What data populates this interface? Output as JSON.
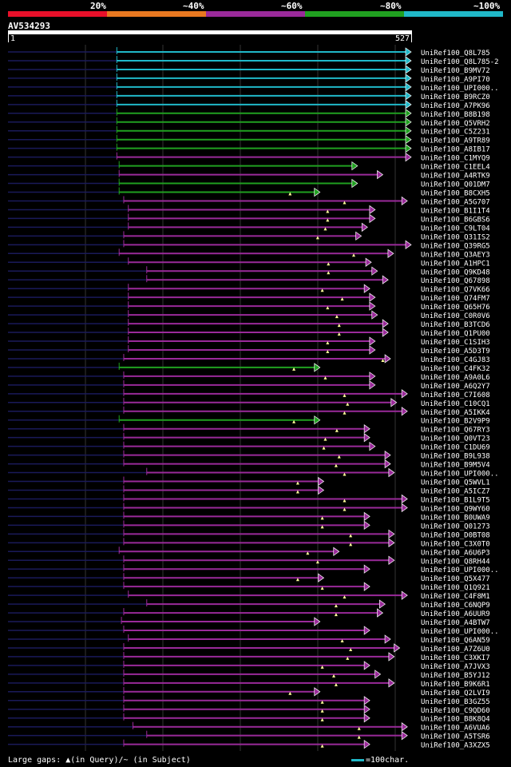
{
  "legend": {
    "labels": [
      "20%",
      "~40%",
      "~60%",
      "~80%",
      "~100%"
    ],
    "colors": [
      "#e8102a",
      "#e87820",
      "#9a2a9a",
      "#20a020",
      "#20b8c8"
    ]
  },
  "query": {
    "name": "AV534293",
    "start": "1",
    "end": "527",
    "length": 527
  },
  "colors": {
    "cyan": "#20b8c8",
    "green": "#20a020",
    "purple": "#9a2a9a",
    "dark": "#1a1a5a",
    "grid": "#333333"
  },
  "hits": [
    {
      "label": "UniRef100_Q8L785",
      "color": "cyan",
      "start": 143,
      "end": 527,
      "gap": null
    },
    {
      "label": "UniRef100_Q8L785-2",
      "color": "cyan",
      "start": 143,
      "end": 527,
      "gap": null
    },
    {
      "label": "UniRef100_B9MV72",
      "color": "cyan",
      "start": 143,
      "end": 527,
      "gap": null
    },
    {
      "label": "UniRef100_A9PI70",
      "color": "cyan",
      "start": 143,
      "end": 527,
      "gap": null
    },
    {
      "label": "UniRef100_UPI000..",
      "color": "cyan",
      "start": 143,
      "end": 527,
      "gap": null
    },
    {
      "label": "UniRef100_B9RCZ0",
      "color": "cyan",
      "start": 143,
      "end": 527,
      "gap": null
    },
    {
      "label": "UniRef100_A7PK96",
      "color": "cyan",
      "start": 143,
      "end": 527,
      "gap": null
    },
    {
      "label": "UniRef100_B8B198",
      "color": "green",
      "start": 143,
      "end": 527,
      "gap": null
    },
    {
      "label": "UniRef100_Q5VRH2",
      "color": "green",
      "start": 143,
      "end": 527,
      "gap": null
    },
    {
      "label": "UniRef100_C5Z231",
      "color": "green",
      "start": 143,
      "end": 527,
      "gap": null
    },
    {
      "label": "UniRef100_A9TR89",
      "color": "green",
      "start": 143,
      "end": 527,
      "gap": null
    },
    {
      "label": "UniRef100_A8IB17",
      "color": "green",
      "start": 143,
      "end": 527,
      "gap": null
    },
    {
      "label": "UniRef100_C1MYQ9",
      "color": "purple",
      "start": 143,
      "end": 527,
      "gap": null
    },
    {
      "label": "UniRef100_C1EEL4",
      "color": "green",
      "start": 146,
      "end": 457,
      "gap": null
    },
    {
      "label": "UniRef100_A4RTK9",
      "color": "purple",
      "start": 146,
      "end": 490,
      "gap": null
    },
    {
      "label": "UniRef100_Q01DM7",
      "color": "green",
      "start": 146,
      "end": 457,
      "gap": null
    },
    {
      "label": "UniRef100_B8CXH5",
      "color": "green",
      "start": 146,
      "end": 408,
      "gap": 369
    },
    {
      "label": "UniRef100_A5G707",
      "color": "purple",
      "start": 152,
      "end": 522,
      "gap": 440
    },
    {
      "label": "UniRef100_B1I1T4",
      "color": "purple",
      "start": 158,
      "end": 480,
      "gap": 418
    },
    {
      "label": "UniRef100_B6GBS6",
      "color": "purple",
      "start": 158,
      "end": 480,
      "gap": 418
    },
    {
      "label": "UniRef100_C9LT04",
      "color": "purple",
      "start": 158,
      "end": 470,
      "gap": 415
    },
    {
      "label": "UniRef100_Q31IS2",
      "color": "purple",
      "start": 152,
      "end": 462,
      "gap": 405
    },
    {
      "label": "UniRef100_Q39RG5",
      "color": "purple",
      "start": 152,
      "end": 527,
      "gap": null
    },
    {
      "label": "UniRef100_Q3AEY3",
      "color": "purple",
      "start": 146,
      "end": 504,
      "gap": 452
    },
    {
      "label": "UniRef100_A1HPC1",
      "color": "purple",
      "start": 158,
      "end": 475,
      "gap": 419
    },
    {
      "label": "UniRef100_Q9KD48",
      "color": "purple",
      "start": 182,
      "end": 483,
      "gap": 419
    },
    {
      "label": "UniRef100_Q67898",
      "color": "purple",
      "start": 182,
      "end": 497,
      "gap": null
    },
    {
      "label": "UniRef100_Q7VK66",
      "color": "purple",
      "start": 158,
      "end": 473,
      "gap": 411
    },
    {
      "label": "UniRef100_Q74FM7",
      "color": "purple",
      "start": 158,
      "end": 480,
      "gap": 437
    },
    {
      "label": "UniRef100_Q65H76",
      "color": "purple",
      "start": 158,
      "end": 480,
      "gap": 418
    },
    {
      "label": "UniRef100_C0R0V6",
      "color": "purple",
      "start": 158,
      "end": 483,
      "gap": 430
    },
    {
      "label": "UniRef100_B3TCD6",
      "color": "purple",
      "start": 158,
      "end": 497,
      "gap": 433
    },
    {
      "label": "UniRef100_Q1PU00",
      "color": "purple",
      "start": 158,
      "end": 497,
      "gap": 433
    },
    {
      "label": "UniRef100_C1SIH3",
      "color": "purple",
      "start": 158,
      "end": 480,
      "gap": 418
    },
    {
      "label": "UniRef100_A5D3T9",
      "color": "purple",
      "start": 158,
      "end": 480,
      "gap": 418
    },
    {
      "label": "UniRef100_C4GJ83",
      "color": "purple",
      "start": 152,
      "end": 500,
      "gap": 490
    },
    {
      "label": "UniRef100_C4FK32",
      "color": "green",
      "start": 146,
      "end": 408,
      "gap": 374
    },
    {
      "label": "UniRef100_A9A0L6",
      "color": "purple",
      "start": 152,
      "end": 480,
      "gap": 415
    },
    {
      "label": "UniRef100_A6Q2Y7",
      "color": "purple",
      "start": 152,
      "end": 480,
      "gap": null
    },
    {
      "label": "UniRef100_C7I608",
      "color": "purple",
      "start": 152,
      "end": 522,
      "gap": 440
    },
    {
      "label": "UniRef100_C10CQ1",
      "color": "purple",
      "start": 152,
      "end": 508,
      "gap": 444
    },
    {
      "label": "UniRef100_A5IKK4",
      "color": "purple",
      "start": 152,
      "end": 522,
      "gap": 440
    },
    {
      "label": "UniRef100_B2V9P9",
      "color": "green",
      "start": 146,
      "end": 408,
      "gap": 374
    },
    {
      "label": "UniRef100_Q67RY3",
      "color": "purple",
      "start": 152,
      "end": 473,
      "gap": 430
    },
    {
      "label": "UniRef100_Q0VT23",
      "color": "purple",
      "start": 152,
      "end": 473,
      "gap": 415
    },
    {
      "label": "UniRef100_C1DU69",
      "color": "purple",
      "start": 152,
      "end": 480,
      "gap": 413
    },
    {
      "label": "UniRef100_B9L938",
      "color": "purple",
      "start": 152,
      "end": 500,
      "gap": 433
    },
    {
      "label": "UniRef100_B9M5V4",
      "color": "purple",
      "start": 152,
      "end": 500,
      "gap": 429
    },
    {
      "label": "UniRef100_UPI000..",
      "color": "purple",
      "start": 182,
      "end": 505,
      "gap": 440
    },
    {
      "label": "UniRef100_Q5WVL1",
      "color": "purple",
      "start": 152,
      "end": 413,
      "gap": 379
    },
    {
      "label": "UniRef100_A5ICZ7",
      "color": "purple",
      "start": 152,
      "end": 413,
      "gap": 379
    },
    {
      "label": "UniRef100_B1L9T5",
      "color": "purple",
      "start": 152,
      "end": 522,
      "gap": 440
    },
    {
      "label": "UniRef100_Q9WY60",
      "color": "purple",
      "start": 152,
      "end": 522,
      "gap": 440
    },
    {
      "label": "UniRef100_B0UWA9",
      "color": "purple",
      "start": 152,
      "end": 473,
      "gap": 411
    },
    {
      "label": "UniRef100_Q01273",
      "color": "purple",
      "start": 152,
      "end": 473,
      "gap": 411
    },
    {
      "label": "UniRef100_D0BT08",
      "color": "purple",
      "start": 152,
      "end": 505,
      "gap": 448
    },
    {
      "label": "UniRef100_C3X0T0",
      "color": "purple",
      "start": 152,
      "end": 505,
      "gap": 448
    },
    {
      "label": "UniRef100_A6U6P3",
      "color": "purple",
      "start": 146,
      "end": 433,
      "gap": 392
    },
    {
      "label": "UniRef100_Q8RH44",
      "color": "purple",
      "start": 152,
      "end": 505,
      "gap": 405
    },
    {
      "label": "UniRef100_UPI000..",
      "color": "purple",
      "start": 152,
      "end": 473,
      "gap": null
    },
    {
      "label": "UniRef100_Q5X477",
      "color": "purple",
      "start": 152,
      "end": 413,
      "gap": 379
    },
    {
      "label": "UniRef100_Q1Q921",
      "color": "purple",
      "start": 152,
      "end": 473,
      "gap": 411
    },
    {
      "label": "UniRef100_C4F8M1",
      "color": "purple",
      "start": 158,
      "end": 522,
      "gap": 440
    },
    {
      "label": "UniRef100_C6NQP9",
      "color": "purple",
      "start": 182,
      "end": 493,
      "gap": 429
    },
    {
      "label": "UniRef100_A6UUR9",
      "color": "purple",
      "start": 152,
      "end": 490,
      "gap": 429
    },
    {
      "label": "UniRef100_A4BTW7",
      "color": "purple",
      "start": 149,
      "end": 408,
      "gap": null
    },
    {
      "label": "UniRef100_UPI000..",
      "color": "purple",
      "start": 152,
      "end": 473,
      "gap": null
    },
    {
      "label": "UniRef100_Q6AN59",
      "color": "purple",
      "start": 158,
      "end": 500,
      "gap": 437
    },
    {
      "label": "UniRef100_A7Z6U0",
      "color": "purple",
      "start": 152,
      "end": 512,
      "gap": 448
    },
    {
      "label": "UniRef100_C3XKI7",
      "color": "purple",
      "start": 152,
      "end": 505,
      "gap": 444
    },
    {
      "label": "UniRef100_A7JVX3",
      "color": "purple",
      "start": 152,
      "end": 473,
      "gap": 411
    },
    {
      "label": "UniRef100_B5YJ12",
      "color": "purple",
      "start": 152,
      "end": 487,
      "gap": 426
    },
    {
      "label": "UniRef100_B9K6R1",
      "color": "purple",
      "start": 152,
      "end": 505,
      "gap": 429
    },
    {
      "label": "UniRef100_Q2LVI9",
      "color": "purple",
      "start": 152,
      "end": 408,
      "gap": 369
    },
    {
      "label": "UniRef100_B3GZ55",
      "color": "purple",
      "start": 152,
      "end": 473,
      "gap": 411
    },
    {
      "label": "UniRef100_C9QD60",
      "color": "purple",
      "start": 152,
      "end": 473,
      "gap": 411
    },
    {
      "label": "UniRef100_B8K8Q4",
      "color": "purple",
      "start": 152,
      "end": 473,
      "gap": 411
    },
    {
      "label": "UniRef100_A6VUA6",
      "color": "purple",
      "start": 164,
      "end": 522,
      "gap": 459
    },
    {
      "label": "UniRef100_A5TSR6",
      "color": "purple",
      "start": 182,
      "end": 522,
      "gap": 459
    },
    {
      "label": "UniRef100_A3XZX5",
      "color": "purple",
      "start": 152,
      "end": 473,
      "gap": 411
    }
  ],
  "footer": {
    "text": "Large gaps: ▲(in Query)/~ (in Subject)",
    "scale_text": "=100char."
  }
}
